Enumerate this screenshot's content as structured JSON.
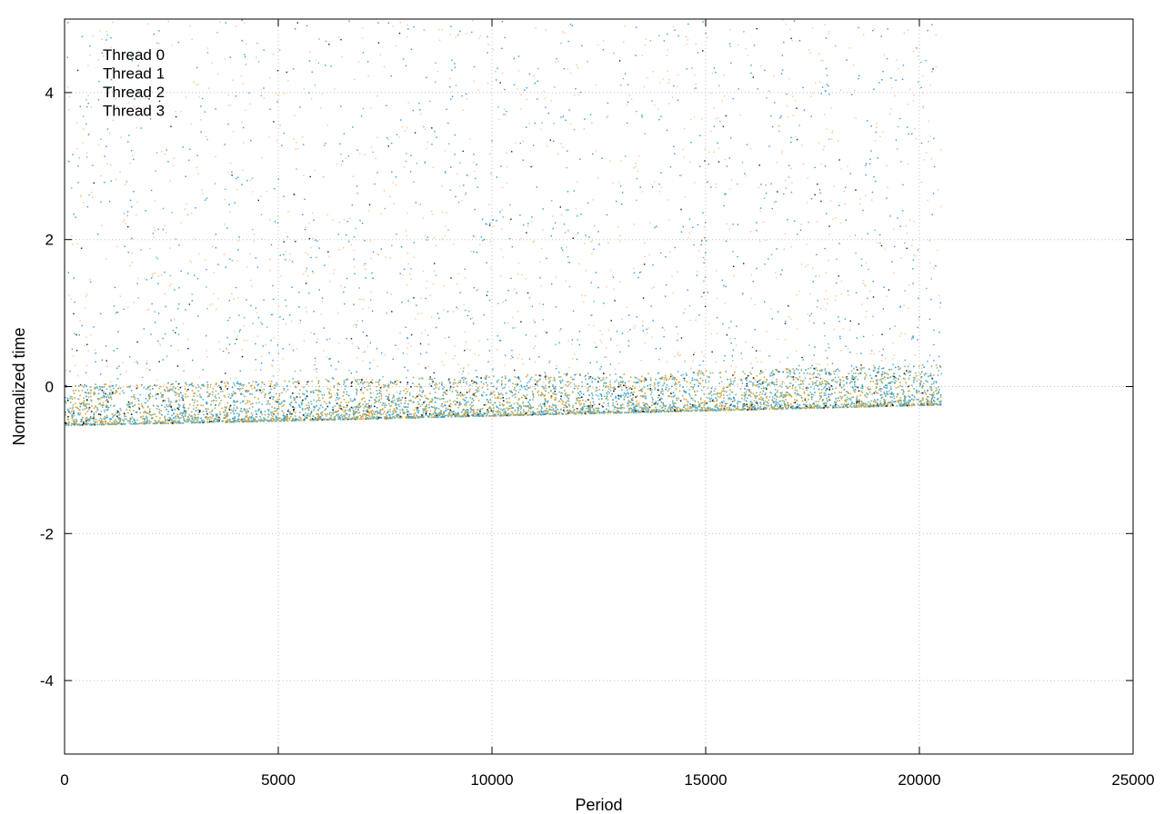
{
  "chart_data": {
    "type": "scatter",
    "title": "",
    "xlabel": "Period",
    "ylabel": "Normalized time",
    "xlim": [
      0,
      25000
    ],
    "ylim": [
      -5,
      5
    ],
    "x_ticks": [
      0,
      5000,
      10000,
      15000,
      20000,
      25000
    ],
    "y_ticks": [
      -4,
      -2,
      0,
      2,
      4
    ],
    "x_tick_labels": [
      "0",
      "5000",
      "10000",
      "15000",
      "20000",
      "25000"
    ],
    "y_tick_labels": [
      "-4",
      "-2",
      "0",
      "2",
      "4"
    ],
    "grid": true,
    "legend_position": "top-left",
    "series": [
      {
        "name": "Thread 0",
        "color": "#1a1a1a"
      },
      {
        "name": "Thread 1",
        "color": "#2b9bd1"
      },
      {
        "name": "Thread 2",
        "color": "#6db7bc"
      },
      {
        "name": "Thread 3",
        "color": "#d4a43a"
      }
    ],
    "data_x_range": [
      0,
      20500
    ],
    "baseline_trend": {
      "x": [
        0,
        5000,
        10000,
        15000,
        20500
      ],
      "y": [
        -0.48,
        -0.42,
        -0.35,
        -0.28,
        -0.2
      ]
    },
    "outlier_color": "#f4c78f"
  }
}
